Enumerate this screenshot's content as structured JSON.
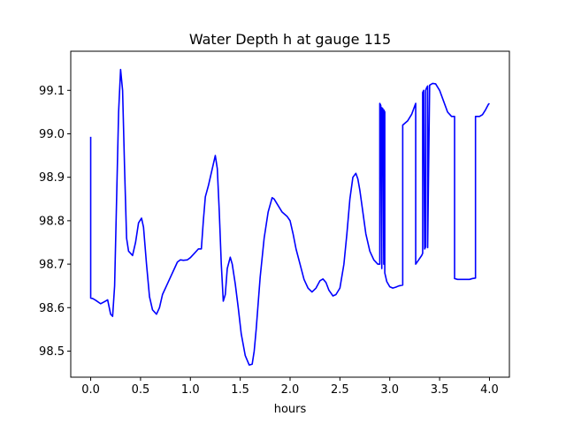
{
  "chart_data": {
    "type": "line",
    "title": "Water Depth h at gauge 115",
    "xlabel": "hours",
    "ylabel": "",
    "xlim": [
      -0.2,
      4.2
    ],
    "ylim": [
      98.44,
      99.19
    ],
    "xticks": [
      0.0,
      0.5,
      1.0,
      1.5,
      2.0,
      2.5,
      3.0,
      3.5,
      4.0
    ],
    "xtick_labels": [
      "0.0",
      "0.5",
      "1.0",
      "1.5",
      "2.0",
      "2.5",
      "3.0",
      "3.5",
      "4.0"
    ],
    "yticks": [
      98.5,
      98.6,
      98.7,
      98.8,
      98.9,
      99.0,
      99.1
    ],
    "ytick_labels": [
      "98.5",
      "98.6",
      "98.7",
      "98.8",
      "98.9",
      "99.0",
      "99.1"
    ],
    "grid": false,
    "legend": "none",
    "series": [
      {
        "color": "#0000ff",
        "x": [
          0.0,
          0.0,
          0.02,
          0.05,
          0.1,
          0.14,
          0.17,
          0.2,
          0.22,
          0.24,
          0.26,
          0.28,
          0.3,
          0.32,
          0.34,
          0.36,
          0.38,
          0.42,
          0.45,
          0.48,
          0.51,
          0.53,
          0.56,
          0.59,
          0.62,
          0.66,
          0.69,
          0.72,
          0.76,
          0.8,
          0.84,
          0.87,
          0.9,
          0.93,
          0.97,
          1.0,
          1.04,
          1.08,
          1.11,
          1.13,
          1.15,
          1.18,
          1.22,
          1.25,
          1.27,
          1.29,
          1.31,
          1.33,
          1.35,
          1.37,
          1.4,
          1.42,
          1.45,
          1.48,
          1.51,
          1.55,
          1.59,
          1.62,
          1.64,
          1.66,
          1.7,
          1.74,
          1.78,
          1.82,
          1.84,
          1.88,
          1.92,
          1.97,
          2.0,
          2.03,
          2.06,
          2.1,
          2.14,
          2.18,
          2.22,
          2.26,
          2.3,
          2.33,
          2.36,
          2.39,
          2.43,
          2.46,
          2.5,
          2.54,
          2.57,
          2.6,
          2.63,
          2.66,
          2.68,
          2.7,
          2.73,
          2.76,
          2.8,
          2.84,
          2.88,
          2.9,
          2.9,
          2.91,
          2.92,
          2.92,
          2.93,
          2.94,
          2.94,
          2.95,
          2.95,
          2.96,
          2.97,
          3.0,
          3.03,
          3.06,
          3.09,
          3.13,
          3.13,
          3.18,
          3.22,
          3.26,
          3.26,
          3.29,
          3.32,
          3.33,
          3.33,
          3.34,
          3.35,
          3.36,
          3.36,
          3.37,
          3.38,
          3.38,
          3.4,
          3.43,
          3.46,
          3.5,
          3.54,
          3.58,
          3.62,
          3.65,
          3.65,
          3.68,
          3.72,
          3.76,
          3.8,
          3.83,
          3.86,
          3.86,
          3.9,
          3.93,
          3.96,
          3.99,
          4.0
        ],
        "y": [
          98.993,
          98.622,
          98.621,
          98.617,
          98.609,
          98.614,
          98.618,
          98.585,
          98.58,
          98.65,
          98.85,
          99.05,
          99.148,
          99.1,
          98.92,
          98.76,
          98.73,
          98.72,
          98.75,
          98.795,
          98.806,
          98.785,
          98.7,
          98.625,
          98.595,
          98.585,
          98.6,
          98.63,
          98.65,
          98.67,
          98.69,
          98.705,
          98.71,
          98.709,
          98.71,
          98.715,
          98.725,
          98.735,
          98.735,
          98.8,
          98.855,
          98.88,
          98.92,
          98.95,
          98.92,
          98.82,
          98.7,
          98.615,
          98.63,
          98.69,
          98.716,
          98.7,
          98.655,
          98.6,
          98.54,
          98.49,
          98.468,
          98.47,
          98.5,
          98.55,
          98.67,
          98.76,
          98.82,
          98.853,
          98.85,
          98.835,
          98.82,
          98.81,
          98.8,
          98.77,
          98.735,
          98.7,
          98.665,
          98.645,
          98.636,
          98.645,
          98.662,
          98.666,
          98.658,
          98.64,
          98.627,
          98.63,
          98.645,
          98.7,
          98.77,
          98.85,
          98.9,
          98.909,
          98.896,
          98.87,
          98.82,
          98.77,
          98.73,
          98.71,
          98.7,
          98.7,
          99.07,
          99.065,
          98.69,
          99.06,
          99.058,
          98.7,
          99.055,
          99.05,
          98.68,
          98.67,
          98.66,
          98.648,
          98.645,
          98.647,
          98.65,
          98.652,
          99.02,
          99.03,
          99.045,
          99.07,
          98.7,
          98.71,
          98.72,
          98.725,
          99.095,
          99.1,
          98.735,
          98.74,
          99.1,
          99.106,
          99.11,
          98.738,
          99.112,
          99.116,
          99.115,
          99.1,
          99.075,
          99.05,
          99.04,
          99.04,
          98.667,
          98.665,
          98.665,
          98.665,
          98.665,
          98.667,
          98.668,
          99.04,
          99.04,
          99.044,
          99.055,
          99.068,
          99.07
        ]
      }
    ]
  }
}
